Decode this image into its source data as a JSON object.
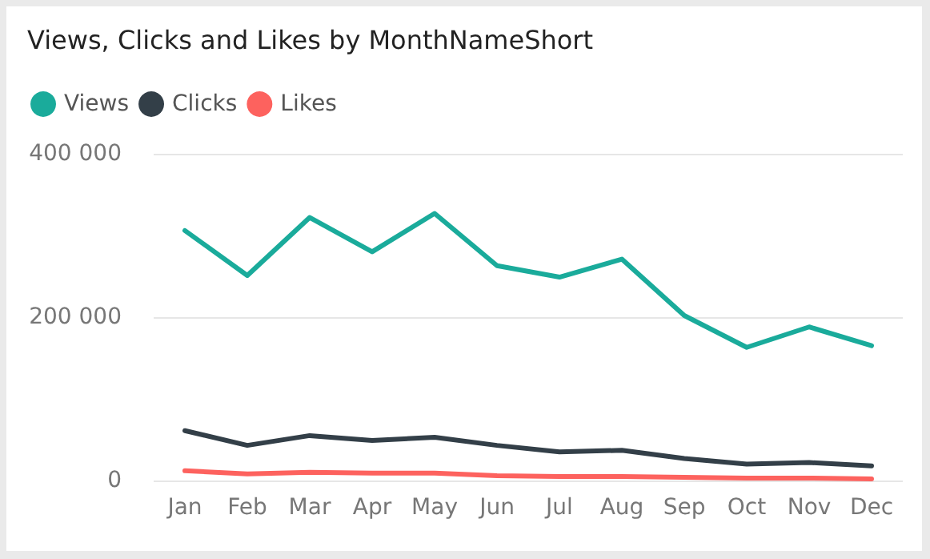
{
  "chart_data": {
    "type": "line",
    "title": "Views, Clicks and Likes by MonthNameShort",
    "categories": [
      "Jan",
      "Feb",
      "Mar",
      "Apr",
      "May",
      "Jun",
      "Jul",
      "Aug",
      "Sep",
      "Oct",
      "Nov",
      "Dec"
    ],
    "series": [
      {
        "name": "Views",
        "color": "#1aab9b",
        "values": [
          306000,
          251000,
          322000,
          280000,
          327000,
          263000,
          249000,
          271000,
          202000,
          163000,
          188000,
          165000
        ]
      },
      {
        "name": "Clicks",
        "color": "#333f48",
        "values": [
          61000,
          43000,
          55000,
          49000,
          53000,
          43000,
          35000,
          37000,
          27000,
          20000,
          22000,
          18000
        ]
      },
      {
        "name": "Likes",
        "color": "#fd625e",
        "values": [
          12000,
          8000,
          10000,
          9000,
          9000,
          6000,
          5000,
          5000,
          4000,
          3000,
          3000,
          2000
        ]
      }
    ],
    "ylim": [
      0,
      400000
    ],
    "yticks": [
      {
        "value": 0,
        "label": "0"
      },
      {
        "value": 200000,
        "label": "200 000"
      },
      {
        "value": 400000,
        "label": "400 000"
      }
    ],
    "grid": "y",
    "legend": "top left",
    "marker": "none",
    "line_style": "solid"
  }
}
